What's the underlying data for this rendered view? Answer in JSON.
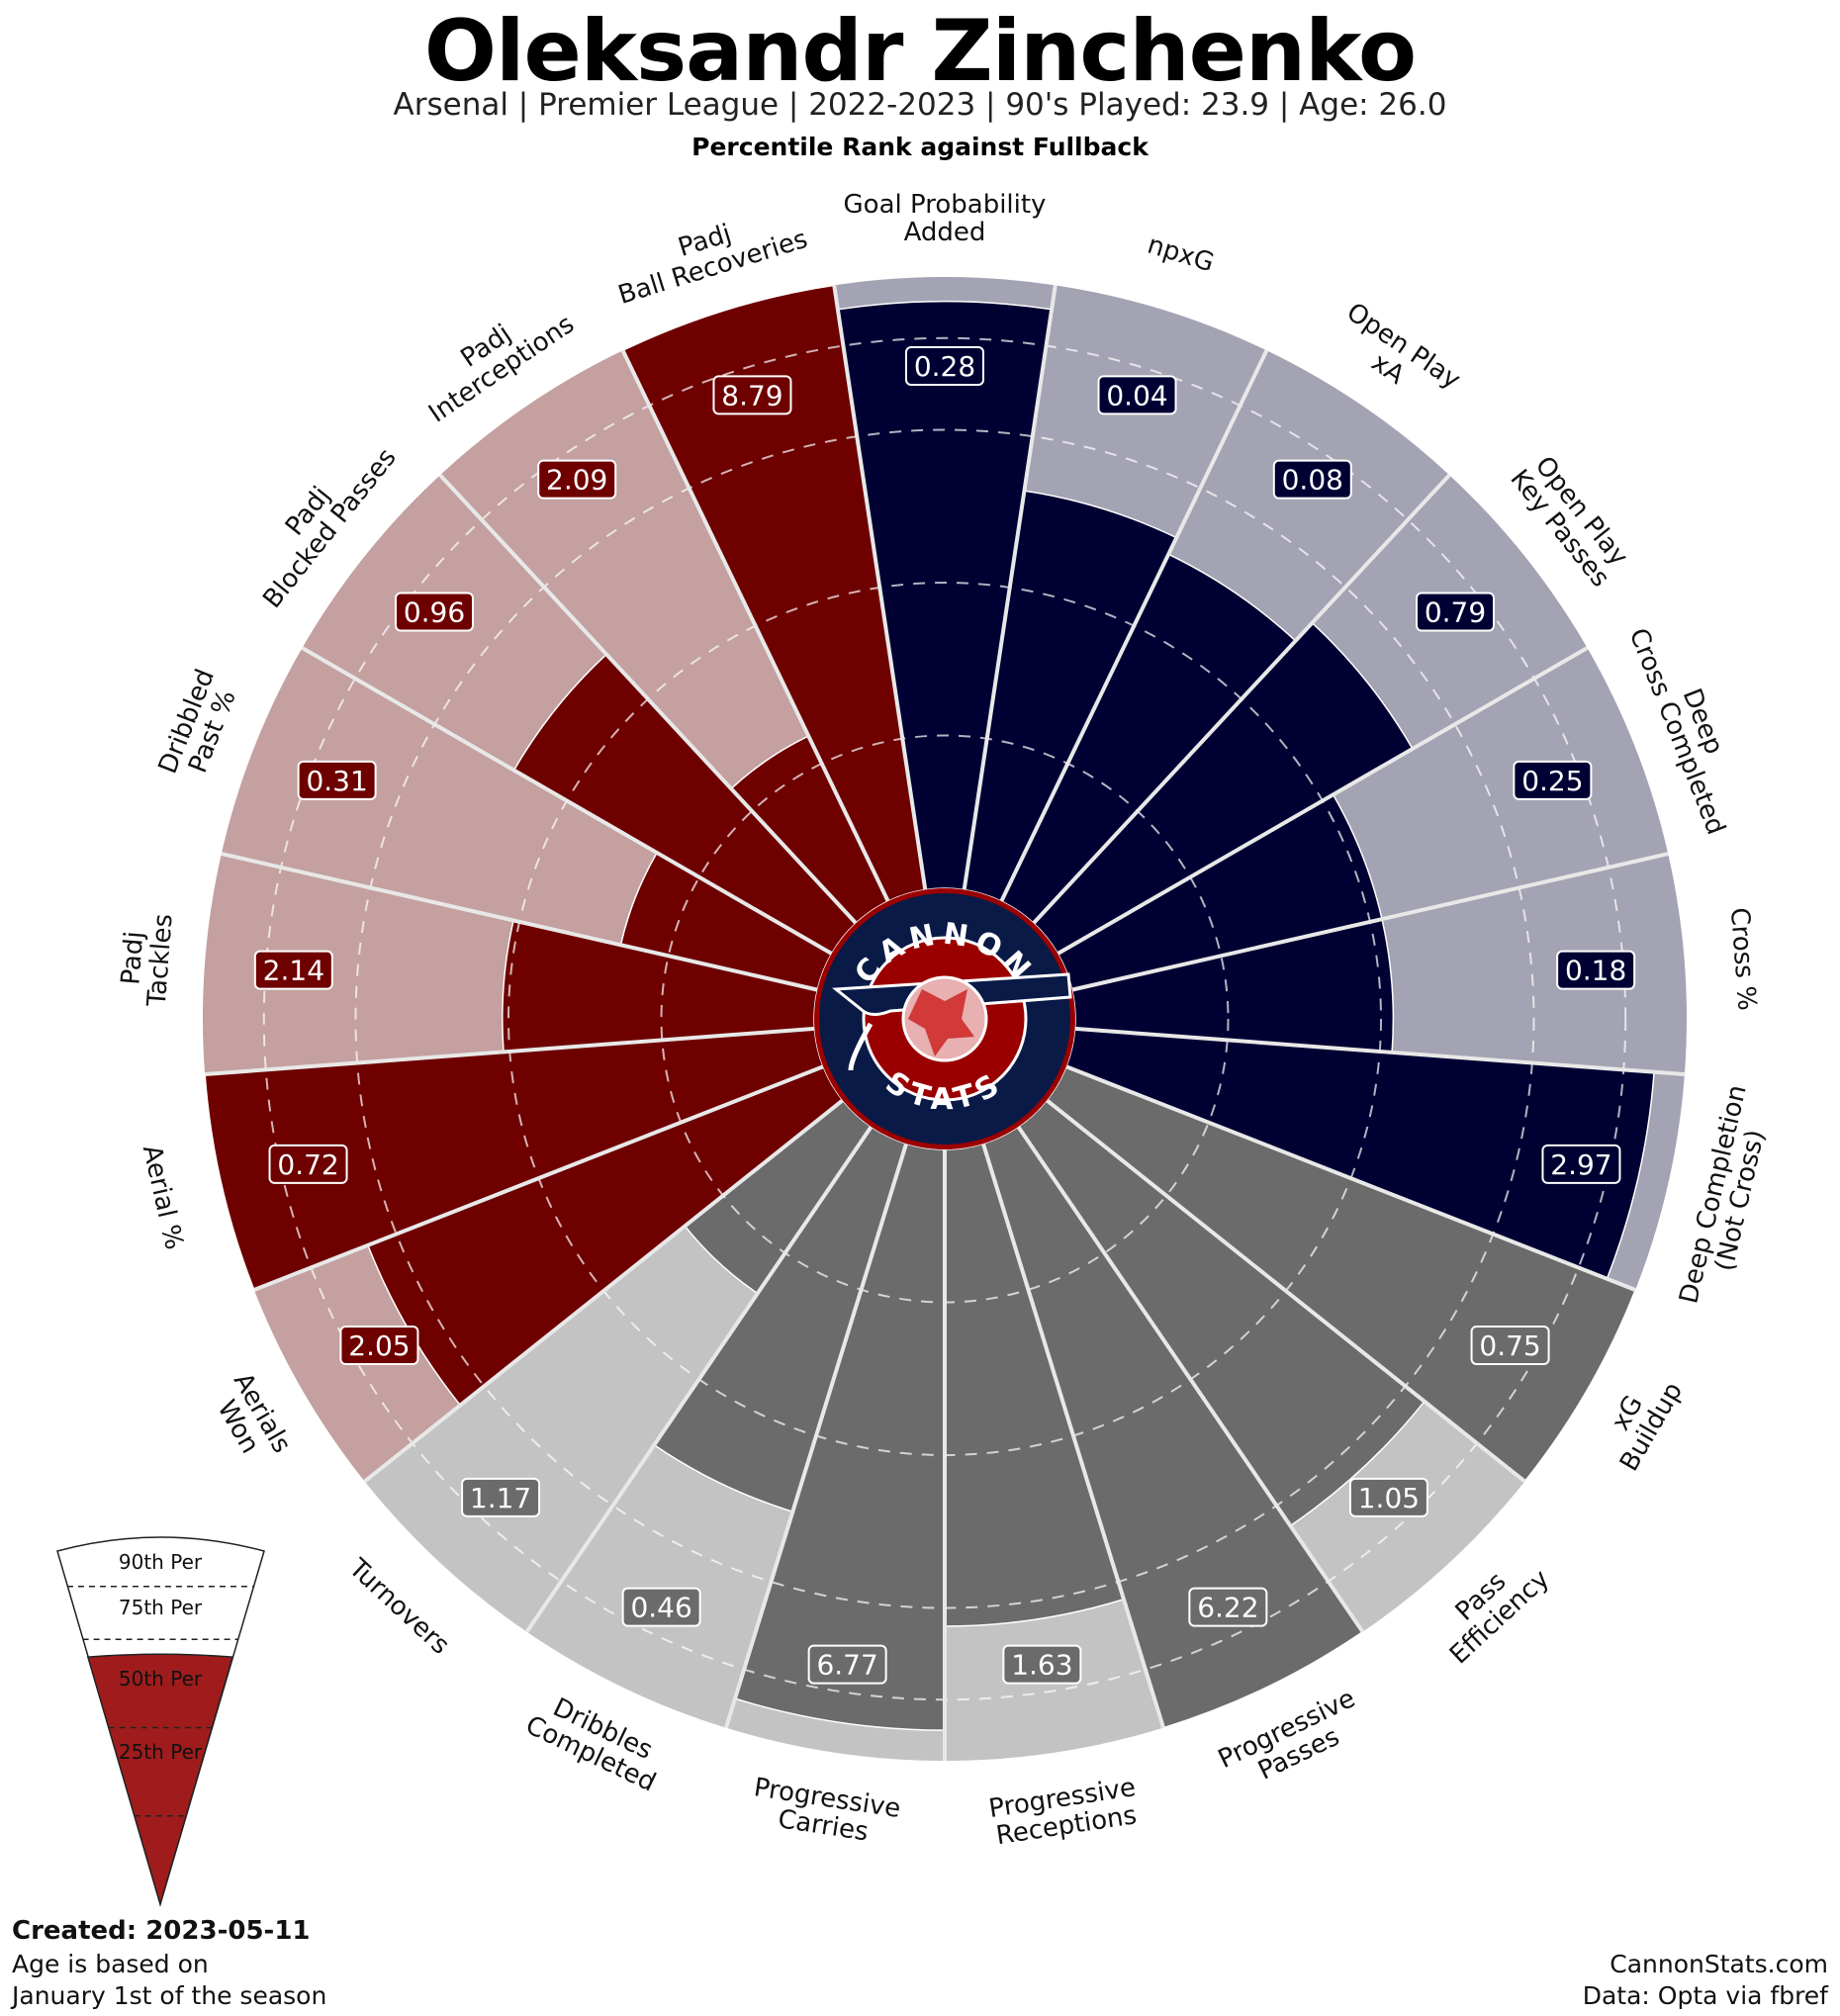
{
  "header": {
    "title": "Oleksandr Zinchenko",
    "subtitle": "Arsenal  | Premier League | 2022-2023 | 90's Played: 23.9 | Age: 26.0",
    "subtitle2": "Percentile Rank against Fullback"
  },
  "footer": {
    "created": "Created: 2023-05-11",
    "age_note_1": "Age is based on",
    "age_note_2": "January 1st of the season",
    "site": "CannonStats.com",
    "source": "Data: Opta via fbref"
  },
  "logo": {
    "top_text": "CANNON",
    "bottom_text": "STATS"
  },
  "legend": {
    "labels": [
      "90th Per",
      "75th Per",
      "50th Per",
      "25th Per"
    ],
    "fill_percentile": 70
  },
  "colors": {
    "defending_dark": "#6e0000",
    "defending_light": "#c4a0a0",
    "attacking_dark": "#000033",
    "attacking_light": "#a3a3b3",
    "possession_dark": "#6b6b6b",
    "possession_light": "#c3c3c3",
    "logo_navy": "#0a1a47",
    "logo_red": "#9b0000",
    "legend_red": "#a01c1c"
  },
  "chart_data": {
    "type": "polar-bar",
    "title": "Oleksandr Zinchenko",
    "value_scale": "percentile",
    "rlim": [
      0,
      100
    ],
    "groups": [
      "defending",
      "attacking",
      "possession"
    ],
    "metrics": [
      {
        "label": "Goal Probability\nAdded",
        "value": "0.28",
        "percentile": 96,
        "group": "attacking"
      },
      {
        "label": "npxG",
        "value": "0.04",
        "percentile": 66,
        "group": "attacking"
      },
      {
        "label": "Open Play\nxA",
        "value": "0.08",
        "percentile": 63,
        "group": "attacking"
      },
      {
        "label": "Open Play\nKey Passes",
        "value": "0.79",
        "percentile": 67,
        "group": "attacking"
      },
      {
        "label": "Deep\nCross Completed",
        "value": "0.25",
        "percentile": 52,
        "group": "attacking"
      },
      {
        "label": "Cross %",
        "value": "0.18",
        "percentile": 52,
        "group": "attacking"
      },
      {
        "label": "Deep Completion\n(Not Cross)",
        "value": "2.97",
        "percentile": 95,
        "group": "attacking"
      },
      {
        "label": "xG\nBuildup",
        "value": "0.75",
        "percentile": 100,
        "group": "possession"
      },
      {
        "label": "Pass\nEfficiency",
        "value": "1.05",
        "percentile": 79,
        "group": "possession"
      },
      {
        "label": "Progressive\nPasses",
        "value": "6.22",
        "percentile": 100,
        "group": "possession"
      },
      {
        "label": "Progressive\nReceptions",
        "value": "1.63",
        "percentile": 78,
        "group": "possession"
      },
      {
        "label": "Progressive\nCarries",
        "value": "6.77",
        "percentile": 95,
        "group": "possession"
      },
      {
        "label": "Dribbles\nCompleted",
        "value": "0.46",
        "percentile": 63,
        "group": "possession"
      },
      {
        "label": "Turnovers",
        "value": "1.17",
        "percentile": 33,
        "group": "possession"
      },
      {
        "label": "Aerials\nWon",
        "value": "2.05",
        "percentile": 80,
        "group": "defending"
      },
      {
        "label": "Aerial %",
        "value": "0.72",
        "percentile": 100,
        "group": "defending"
      },
      {
        "label": "Padj\nTackles",
        "value": "2.14",
        "percentile": 51,
        "group": "defending"
      },
      {
        "label": "Dribbled\nPast %",
        "value": "0.31",
        "percentile": 33,
        "group": "defending"
      },
      {
        "label": "Padj\nBlocked Passes",
        "value": "0.96",
        "percentile": 60,
        "group": "defending"
      },
      {
        "label": "Padj\nInterceptions",
        "value": "2.09",
        "percentile": 30,
        "group": "defending"
      },
      {
        "label": "Padj\nBall Recoveries",
        "value": "8.79",
        "percentile": 100,
        "group": "defending"
      }
    ]
  }
}
